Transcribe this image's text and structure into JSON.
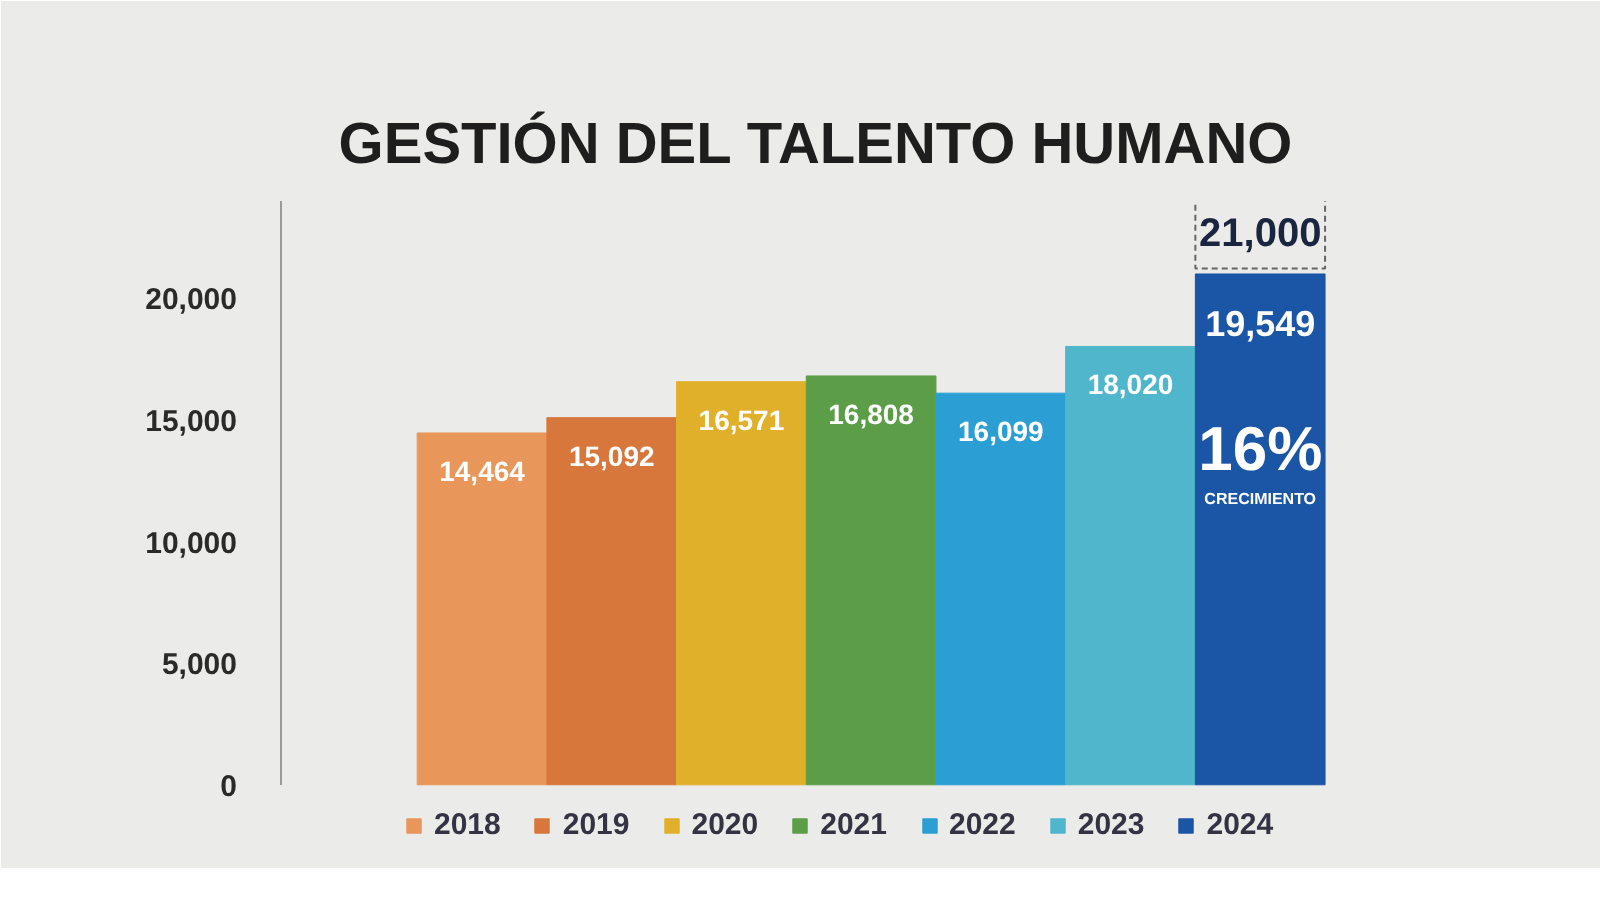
{
  "chart_data": {
    "type": "bar",
    "title": "GESTIÓN DEL TALENTO HUMANO",
    "categories": [
      null
    ],
    "series": [
      {
        "name": "2018",
        "color": "#e8965a",
        "values": [
          14464
        ],
        "value_labels": [
          "14,464"
        ]
      },
      {
        "name": "2019",
        "color": "#d8773c",
        "values": [
          15092
        ],
        "value_labels": [
          "15,092"
        ]
      },
      {
        "name": "2020",
        "color": "#e0b02a",
        "values": [
          16571
        ],
        "value_labels": [
          "16,571"
        ]
      },
      {
        "name": "2021",
        "color": "#5c9e48",
        "values": [
          16808
        ],
        "value_labels": [
          "16,808"
        ]
      },
      {
        "name": "2022",
        "color": "#2b9fd3",
        "values": [
          16099
        ],
        "value_labels": [
          "16,099"
        ]
      },
      {
        "name": "2023",
        "color": "#4fb6cc",
        "values": [
          18020
        ],
        "value_labels": [
          "18,020"
        ]
      },
      {
        "name": "2024",
        "color": "#1b55a5",
        "values": [
          21000
        ],
        "value_labels": [
          "21,000"
        ]
      }
    ],
    "ylim": [
      0,
      24000
    ],
    "yticks": [
      0,
      {
        "value": 5000,
        "label": "5,000"
      },
      {
        "value": 10000,
        "label": "10,000"
      },
      {
        "value": 15000,
        "label": "15,000"
      },
      {
        "value": 20000,
        "label": "20,000"
      }
    ],
    "legend": "bottom",
    "tick_labels": "y",
    "annotations": [
      "19,549",
      "16%",
      "CRECIMIENTO"
    ]
  }
}
